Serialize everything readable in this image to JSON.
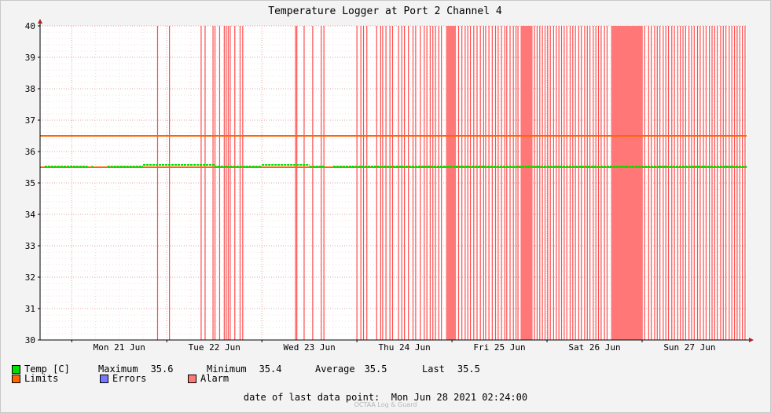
{
  "chart_data": {
    "type": "line",
    "title": "Temperature Logger at Port 2 Channel 4",
    "xlabel": "",
    "ylabel": "",
    "ylim": [
      30,
      40
    ],
    "yticks": [
      30,
      31,
      32,
      33,
      34,
      35,
      36,
      37,
      38,
      39,
      40
    ],
    "xlim": [
      "2021-06-20 16:00",
      "2021-06-28 02:24"
    ],
    "xtick_labels": [
      "Mon 21 Jun",
      "Tue 22 Jun",
      "Wed 23 Jun",
      "Thu 24 Jun",
      "Fri 25 Jun",
      "Sat 26 Jun",
      "Sun 27 Jun"
    ],
    "grid": true,
    "series": [
      {
        "name": "Temp [C]",
        "color": "#00e000",
        "segments": [
          {
            "from": "2021-06-20 17:10",
            "to": "2021-06-21 04:00",
            "value": 35.5
          },
          {
            "from": "2021-06-21 05:00",
            "to": "2021-06-21 05:20",
            "value": 35.5
          },
          {
            "from": "2021-06-21 09:00",
            "to": "2021-06-21 18:00",
            "value": 35.5
          },
          {
            "from": "2021-06-21 18:00",
            "to": "2021-06-22 12:00",
            "value": 35.55
          },
          {
            "from": "2021-06-22 12:00",
            "to": "2021-06-23 00:00",
            "value": 35.5
          },
          {
            "from": "2021-06-23 00:00",
            "to": "2021-06-23 12:00",
            "value": 35.55
          },
          {
            "from": "2021-06-23 12:00",
            "to": "2021-06-23 16:00",
            "value": 35.5
          },
          {
            "from": "2021-06-23 18:00",
            "to": "2021-06-28 02:24",
            "value": 35.5
          }
        ]
      },
      {
        "name": "Limits",
        "color": "#ff6600",
        "lines": [
          36.5,
          35.5
        ]
      }
    ],
    "alarm": {
      "name": "Alarm",
      "color": "#ff7777",
      "dense_intervals": [
        [
          "2021-06-24 22:30",
          "2021-06-25 00:50"
        ],
        [
          "2021-06-25 00:20",
          "2021-06-25 01:00"
        ],
        [
          "2021-06-25 17:20",
          "2021-06-25 20:20"
        ],
        [
          "2021-06-26 16:10",
          "2021-06-27 00:10"
        ]
      ],
      "lines": [
        "2021-06-21 21:40",
        "2021-06-22 00:40",
        "2021-06-22 08:40",
        "2021-06-22 09:40",
        "2021-06-22 11:40",
        "2021-06-22 12:10",
        "2021-06-22 13:20",
        "2021-06-22 14:30",
        "2021-06-22 15:00",
        "2021-06-22 15:30",
        "2021-06-22 16:00",
        "2021-06-22 17:10",
        "2021-06-22 18:30",
        "2021-06-22 19:10",
        "2021-06-23 08:30",
        "2021-06-23 08:50",
        "2021-06-23 10:40",
        "2021-06-23 12:50",
        "2021-06-23 15:00",
        "2021-06-23 15:40",
        "2021-06-24 00:00",
        "2021-06-24 01:00",
        "2021-06-24 01:40",
        "2021-06-24 02:30",
        "2021-06-24 05:00",
        "2021-06-24 06:00",
        "2021-06-24 06:30",
        "2021-06-24 07:20",
        "2021-06-24 08:20",
        "2021-06-24 09:00",
        "2021-06-24 10:30",
        "2021-06-24 11:20",
        "2021-06-24 12:00",
        "2021-06-24 13:00",
        "2021-06-24 14:10",
        "2021-06-24 14:50",
        "2021-06-24 16:00",
        "2021-06-24 17:00",
        "2021-06-24 17:40",
        "2021-06-24 18:30",
        "2021-06-24 19:10",
        "2021-06-24 19:50",
        "2021-06-24 20:40",
        "2021-06-24 21:20",
        "2021-06-25 01:40",
        "2021-06-25 02:30",
        "2021-06-25 03:20",
        "2021-06-25 04:00",
        "2021-06-25 04:40",
        "2021-06-25 05:30",
        "2021-06-25 06:20",
        "2021-06-25 07:10",
        "2021-06-25 08:00",
        "2021-06-25 08:30",
        "2021-06-25 09:20",
        "2021-06-25 10:10",
        "2021-06-25 11:00",
        "2021-06-25 11:40",
        "2021-06-25 12:30",
        "2021-06-25 13:20",
        "2021-06-25 13:50",
        "2021-06-25 14:40",
        "2021-06-25 15:30",
        "2021-06-25 16:10",
        "2021-06-25 16:40",
        "2021-06-25 20:50",
        "2021-06-25 21:30",
        "2021-06-25 22:10",
        "2021-06-25 22:50",
        "2021-06-25 23:30",
        "2021-06-26 00:10",
        "2021-06-26 00:50",
        "2021-06-26 01:40",
        "2021-06-26 02:20",
        "2021-06-26 03:00",
        "2021-06-26 03:40",
        "2021-06-26 04:20",
        "2021-06-26 05:00",
        "2021-06-26 05:50",
        "2021-06-26 06:30",
        "2021-06-26 07:10",
        "2021-06-26 08:00",
        "2021-06-26 08:40",
        "2021-06-26 09:30",
        "2021-06-26 10:10",
        "2021-06-26 10:50",
        "2021-06-26 11:40",
        "2021-06-26 12:20",
        "2021-06-26 13:00",
        "2021-06-26 13:40",
        "2021-06-26 14:30",
        "2021-06-26 15:10",
        "2021-06-27 00:40",
        "2021-06-27 01:40",
        "2021-06-27 02:20",
        "2021-06-27 03:10",
        "2021-06-27 03:50",
        "2021-06-27 04:30",
        "2021-06-27 05:20",
        "2021-06-27 06:00",
        "2021-06-27 06:40",
        "2021-06-27 07:30",
        "2021-06-27 08:10",
        "2021-06-27 09:00",
        "2021-06-27 09:40",
        "2021-06-27 10:20",
        "2021-06-27 11:00",
        "2021-06-27 11:50",
        "2021-06-27 12:30",
        "2021-06-27 13:10",
        "2021-06-27 14:00",
        "2021-06-27 14:40",
        "2021-06-27 15:30",
        "2021-06-27 16:10",
        "2021-06-27 17:00",
        "2021-06-27 17:40",
        "2021-06-27 18:20",
        "2021-06-27 19:00",
        "2021-06-27 19:50",
        "2021-06-27 20:30",
        "2021-06-27 21:10",
        "2021-06-27 22:00",
        "2021-06-27 22:40",
        "2021-06-27 23:20",
        "2021-06-28 00:00",
        "2021-06-28 00:40",
        "2021-06-28 01:20",
        "2021-06-28 02:00"
      ]
    },
    "legend": [
      {
        "label": "Temp [C]",
        "color": "#00e000"
      },
      {
        "label": "Limits",
        "color": "#ff6600"
      },
      {
        "label": "Errors",
        "color": "#7777ff"
      },
      {
        "label": "Alarm",
        "color": "#ff7777"
      }
    ],
    "stats": {
      "maximum_label": "Maximum",
      "maximum": "35.6",
      "minimum_label": "Minimum",
      "minimum": "35.4",
      "average_label": "Average",
      "average": "35.5",
      "last_label": "Last",
      "last": "35.5"
    }
  },
  "footer": {
    "last_data_point": "date of last data point:  Mon Jun 28 2021 02:24:00",
    "watermark": "OCTAA Log & Guard"
  },
  "colors": {
    "background": "#f3f3f3",
    "plot_background": "#ffffff",
    "grid": "#f0b0b0",
    "axis": "#000000"
  }
}
